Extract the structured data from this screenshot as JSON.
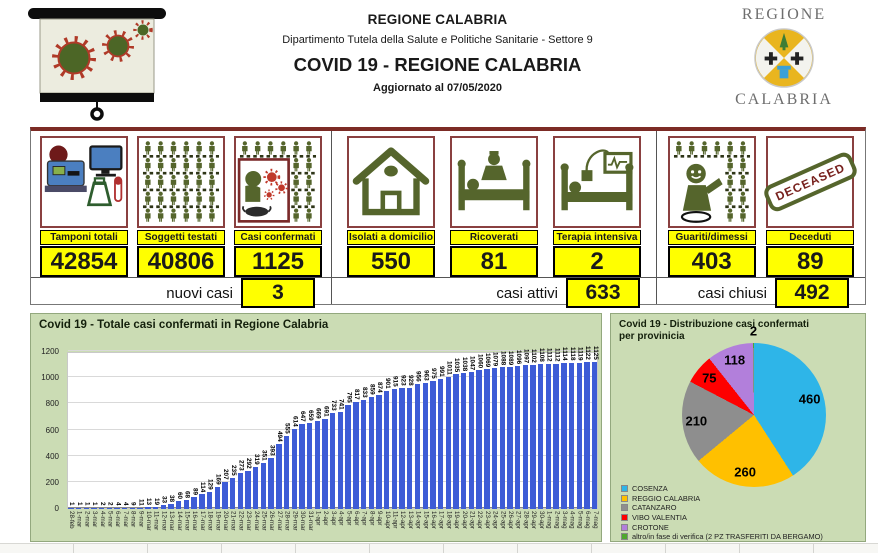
{
  "header": {
    "org": "REGIONE CALABRIA",
    "dept": "Dipartimento Tutela della Salute e Politiche Sanitarie - Settore 9",
    "title": "COVID 19 - REGIONE CALABRIA",
    "updated": "Aggiornato al  07/05/2020",
    "logo_top": "REGIONE",
    "logo_bottom": "CALABRIA"
  },
  "stats": {
    "cards": [
      {
        "label": "Tamponi totali",
        "value": "42854",
        "icon": "lab-testing-icon"
      },
      {
        "label": "Soggetti testati",
        "value": "40806",
        "icon": "people-grid-icon"
      },
      {
        "label": "Casi confermati",
        "value": "1125",
        "icon": "infected-person-icon"
      },
      {
        "label": "Isolati a domicilio",
        "value": "550",
        "icon": "home-icon"
      },
      {
        "label": "Ricoverati",
        "value": "81",
        "icon": "hospital-bed-icon"
      },
      {
        "label": "Terapia intensiva",
        "value": "2",
        "icon": "icu-bed-icon"
      },
      {
        "label": "Guariti/dimessi",
        "value": "403",
        "icon": "recovered-person-icon"
      },
      {
        "label": "Deceduti",
        "value": "89",
        "icon": "deceased-stamp-icon",
        "stamp_text": "DECEASED"
      }
    ],
    "summary": [
      {
        "label": "nuovi casi",
        "value": "3"
      },
      {
        "label": "casi attivi",
        "value": "633"
      },
      {
        "label": "casi chiusi",
        "value": "492"
      }
    ]
  },
  "chart_data": [
    {
      "type": "bar",
      "title": "Covid 19 - Totale casi confermati in Regione Calabria",
      "x": [
        "28-feb",
        "1-mar",
        "2-mar",
        "3-mar",
        "4-mar",
        "5-mar",
        "6-mar",
        "7-mar",
        "8-mar",
        "9-mar",
        "10-mar",
        "11-mar",
        "12-mar",
        "13-mar",
        "14-mar",
        "15-mar",
        "16-mar",
        "17-mar",
        "18-mar",
        "19-mar",
        "20-mar",
        "21-mar",
        "22-mar",
        "23-mar",
        "24-mar",
        "25-mar",
        "26-mar",
        "27-mar",
        "28-mar",
        "29-mar",
        "30-mar",
        "31-mar",
        "1-apr",
        "2-apr",
        "3-apr",
        "4-apr",
        "5-apr",
        "6-apr",
        "7-apr",
        "8-apr",
        "9-apr",
        "10-apr",
        "11-apr",
        "12-apr",
        "13-apr",
        "14-apr",
        "15-apr",
        "16-apr",
        "17-apr",
        "18-apr",
        "19-apr",
        "20-apr",
        "21-apr",
        "22-apr",
        "23-apr",
        "24-apr",
        "25-apr",
        "26-apr",
        "27-apr",
        "28-apr",
        "29-apr",
        "30-apr",
        "1-mag",
        "2-mag",
        "3-mag",
        "4-mag",
        "5-mag",
        "6-mag",
        "7-mag"
      ],
      "values": [
        1,
        1,
        1,
        1,
        2,
        2,
        4,
        4,
        9,
        11,
        13,
        19,
        33,
        38,
        60,
        68,
        89,
        114,
        129,
        169,
        207,
        235,
        273,
        292,
        319,
        351,
        393,
        494,
        555,
        614,
        647,
        659,
        669,
        691,
        733,
        741,
        795,
        817,
        833,
        859,
        874,
        901,
        915,
        923,
        928,
        956,
        963,
        975,
        991,
        1011,
        1035,
        1038,
        1047,
        1060,
        1069,
        1079,
        1088,
        1089,
        1096,
        1097,
        1102,
        1108,
        1112,
        1112,
        1114,
        1118,
        1119,
        1122,
        1125
      ],
      "ylim": [
        0,
        1200
      ],
      "yticks": [
        0,
        200,
        400,
        600,
        800,
        1000,
        1200
      ],
      "bar_color": "#3d5cd6",
      "grid": true,
      "legend_position": "none"
    },
    {
      "type": "pie",
      "title": "Covid 19 - Distribuzione casi confermati per provinicia",
      "labels": [
        "COSENZA",
        "REGGIO  CALABRIA",
        "CATANZARO",
        "VIBO VALENTIA",
        "CROTONE",
        "altro/in fase di verifica (2 PZ TRASFERITI  DA BERGAMO)"
      ],
      "values": [
        460,
        260,
        210,
        75,
        118,
        2
      ],
      "colors": [
        "#2eb5e8",
        "#ffc000",
        "#8e8e8e",
        "#fe0000",
        "#b27fdb",
        "#4ea72e"
      ],
      "legend_position": "bottom-left"
    }
  ],
  "colors": {
    "accent_yellow": "#ffff00",
    "icon_olive": "#55652c",
    "virus_red": "#b03a28",
    "card_border_maroon": "#8a4040",
    "panel_green": "#cbdcb4",
    "bar_blue": "#3d5cd6"
  }
}
